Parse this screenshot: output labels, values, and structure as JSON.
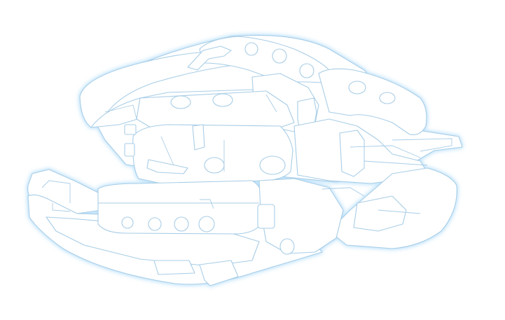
{
  "illustration": {
    "subject": "mechanical-weapon-silhouette",
    "colors": {
      "background": "#ffffff",
      "fill": "#ffffff",
      "stroke": "#a8cde6",
      "glow": "#bfe3fb"
    }
  }
}
